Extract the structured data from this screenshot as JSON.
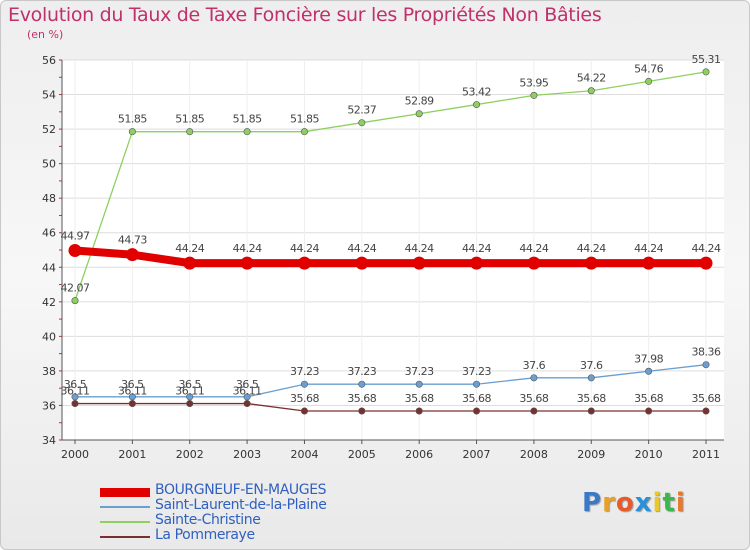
{
  "title": "Evolution du Taux de Taxe Foncière sur les Propriétés Non Bâties",
  "unit_label": "(en %)",
  "logo": {
    "letters": [
      "P",
      "r",
      "o",
      "x",
      "i",
      "t",
      "i"
    ],
    "colors": [
      "#3a78c8",
      "#e8a02a",
      "#e85a2a",
      "#2a90d8",
      "#e8c82a",
      "#3ab84a",
      "#e8782a"
    ]
  },
  "chart_data": {
    "type": "line",
    "title": "Evolution du Taux de Taxe Foncière sur les Propriétés Non Bâties",
    "ylabel": "(en %)",
    "xlabel": "",
    "x": [
      "2000",
      "2001",
      "2002",
      "2003",
      "2004",
      "2005",
      "2006",
      "2007",
      "2008",
      "2009",
      "2010",
      "2011"
    ],
    "ylim": [
      34,
      56
    ],
    "yticks": [
      34,
      36,
      38,
      40,
      42,
      44,
      46,
      48,
      50,
      52,
      54,
      56
    ],
    "grid": true,
    "series": [
      {
        "name": "BOURGNEUF-EN-MAUGES",
        "color": "#e00000",
        "values": [
          44.97,
          44.73,
          44.24,
          44.24,
          44.24,
          44.24,
          44.24,
          44.24,
          44.24,
          44.24,
          44.24,
          44.24
        ],
        "labels": [
          "44.97",
          "44.73",
          "44.24",
          "44.24",
          "44.24",
          "44.24",
          "44.24",
          "44.24",
          "44.24",
          "44.24",
          "44.24",
          "44.24"
        ]
      },
      {
        "name": "Saint-Laurent-de-la-Plaine",
        "color": "#6a9fd0",
        "values": [
          36.5,
          36.5,
          36.5,
          36.5,
          37.23,
          37.23,
          37.23,
          37.23,
          37.6,
          37.6,
          37.98,
          38.36
        ],
        "labels": [
          "36.5",
          "36.5",
          "36.5",
          "36.5",
          "37.23",
          "37.23",
          "37.23",
          "37.23",
          "37.6",
          "37.6",
          "37.98",
          "38.36"
        ]
      },
      {
        "name": "Sainte-Christine",
        "color": "#8ed060",
        "values": [
          42.07,
          51.85,
          51.85,
          51.85,
          51.85,
          52.37,
          52.89,
          53.42,
          53.95,
          54.22,
          54.76,
          55.31
        ],
        "labels": [
          "42.07",
          "51.85",
          "51.85",
          "51.85",
          "51.85",
          "52.37",
          "52.89",
          "53.42",
          "53.95",
          "54.22",
          "54.76",
          "55.31"
        ]
      },
      {
        "name": "La Pommeraye",
        "color": "#7a3030",
        "values": [
          36.11,
          36.11,
          36.11,
          36.11,
          35.68,
          35.68,
          35.68,
          35.68,
          35.68,
          35.68,
          35.68,
          35.68
        ],
        "labels": [
          "36.11",
          "36.11",
          "36.11",
          "36.11",
          "35.68",
          "35.68",
          "35.68",
          "35.68",
          "35.68",
          "35.68",
          "35.68",
          "35.68"
        ]
      }
    ],
    "legend_position": "bottom-left"
  }
}
